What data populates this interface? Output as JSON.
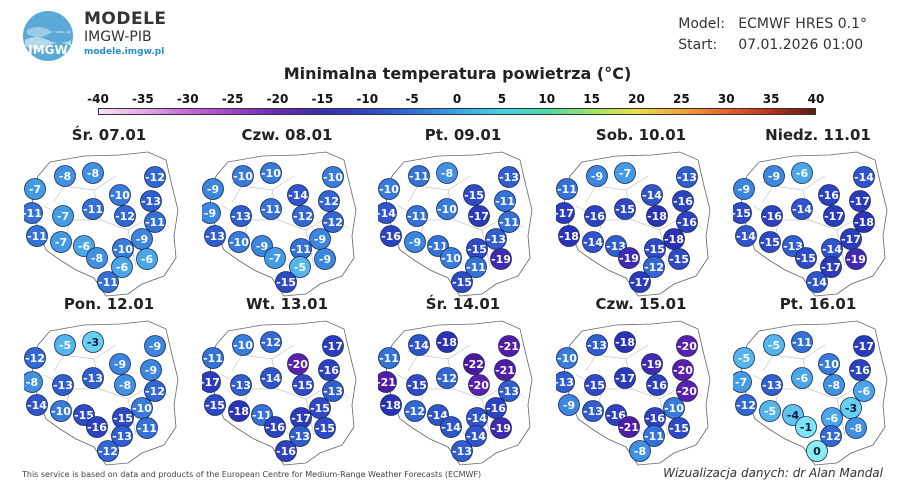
{
  "header": {
    "logo_text": "IMGW",
    "brand_line1": "MODELE",
    "brand_line2": "IMGW-PIB",
    "brand_url": "modele.imgw.pl",
    "model_label": "Model:",
    "model_value": "ECMWF HRES 0.1°",
    "start_label": "Start:",
    "start_value": "07.01.2026 01:00"
  },
  "title": "Minimalna temperatura powietrza (°C)",
  "scale": {
    "ticks": [
      "-40",
      "-35",
      "-30",
      "-25",
      "-20",
      "-15",
      "-10",
      "-5",
      "0",
      "5",
      "10",
      "15",
      "20",
      "25",
      "30",
      "35",
      "40"
    ],
    "colors": [
      "#f6e1f6",
      "#e7a6ea",
      "#c56ad6",
      "#9f43c9",
      "#6a2bb0",
      "#3b2fb0",
      "#2d47c4",
      "#2f6fd8",
      "#3aa3e6",
      "#44d2e8",
      "#4fd9a8",
      "#9be36a",
      "#e9e04b",
      "#f1a43a",
      "#e4642a",
      "#b8321f",
      "#5a1b12"
    ]
  },
  "panels": [
    {
      "title": "Śr. 07.01",
      "values": [
        -8,
        -8,
        -12,
        -7,
        -10,
        -13,
        -11,
        -11,
        -7,
        -12,
        -11,
        -11,
        -9,
        -7,
        -6,
        -10,
        -8,
        -6,
        -6,
        -11
      ]
    },
    {
      "title": "Czw. 08.01",
      "values": [
        -10,
        -10,
        -10,
        -9,
        -14,
        -12,
        -9,
        -11,
        -13,
        -12,
        -12,
        -13,
        -9,
        -10,
        -9,
        -11,
        -7,
        -9,
        -5,
        -15
      ]
    },
    {
      "title": "Pt. 09.01",
      "values": [
        -11,
        -8,
        -13,
        -10,
        -15,
        -11,
        -14,
        -10,
        -11,
        -17,
        -11,
        -16,
        -13,
        -9,
        -11,
        -15,
        -10,
        -19,
        -11,
        -15
      ]
    },
    {
      "title": "Sob. 10.01",
      "values": [
        -9,
        -7,
        -13,
        -11,
        -14,
        -16,
        -17,
        -15,
        -16,
        -18,
        -16,
        -18,
        -18,
        -14,
        -13,
        -15,
        -19,
        -15,
        -12,
        -17
      ]
    },
    {
      "title": "Niedz. 11.01",
      "values": [
        -9,
        -6,
        -14,
        -9,
        -16,
        -17,
        -15,
        -14,
        -16,
        -17,
        -18,
        -14,
        -17,
        -15,
        -13,
        -14,
        -15,
        -19,
        -17,
        -14
      ]
    },
    {
      "title": "Pon. 12.01",
      "values": [
        -5,
        -3,
        -9,
        -12,
        -9,
        -9,
        -8,
        -13,
        -13,
        -8,
        -12,
        -14,
        -10,
        -10,
        -15,
        -15,
        -16,
        -11,
        -13,
        -12
      ]
    },
    {
      "title": "Wt. 13.01",
      "values": [
        -10,
        -12,
        -17,
        -11,
        -20,
        -16,
        -17,
        -14,
        -13,
        -15,
        -13,
        -15,
        -15,
        -18,
        -11,
        -17,
        -16,
        -15,
        -13,
        -16
      ]
    },
    {
      "title": "Śr. 14.01",
      "values": [
        -14,
        -18,
        -21,
        -11,
        -22,
        -21,
        -21,
        -12,
        -15,
        -20,
        -13,
        -18,
        -16,
        -12,
        -14,
        -14,
        -14,
        -19,
        -14,
        -13
      ]
    },
    {
      "title": "Czw. 15.01",
      "values": [
        -13,
        -18,
        -20,
        -10,
        -19,
        -20,
        -13,
        -17,
        -15,
        -16,
        -20,
        -9,
        -10,
        -13,
        -16,
        -16,
        -21,
        -15,
        -11,
        -8
      ]
    },
    {
      "title": "Pt. 16.01",
      "values": [
        -5,
        -11,
        -17,
        -5,
        -10,
        -16,
        -7,
        -6,
        -13,
        -8,
        -6,
        -12,
        -3,
        -5,
        -4,
        -6,
        -1,
        -8,
        -12,
        0
      ]
    }
  ],
  "footer": {
    "disclaimer": "This service is based on data and products of the European Centre for Medium-Range Weather Forecasts (ECMWF)",
    "credit": "Wizualizacja danych: dr Alan Mandal"
  }
}
